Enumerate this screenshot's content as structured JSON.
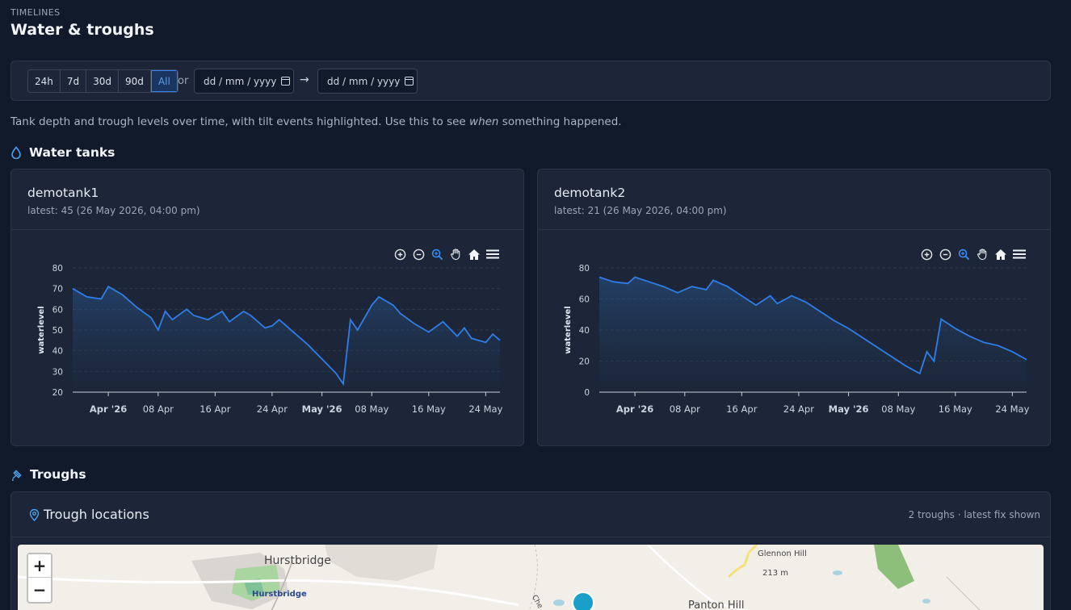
{
  "header": {
    "eyebrow": "TIMELINES",
    "title": "Water & troughs"
  },
  "filters": {
    "ranges": [
      "24h",
      "7d",
      "30d",
      "90d",
      "All"
    ],
    "active_range": "All",
    "or_label": "or",
    "from_placeholder": "dd / mm / yyyy",
    "arrow": "→",
    "to_placeholder": "dd / mm / yyyy"
  },
  "description": {
    "before": "Tank depth and trough levels over time, with tilt events highlighted. Use this to see ",
    "emphasis": "when",
    "after": " something happened."
  },
  "tanks_section": {
    "title": "Water tanks",
    "icon": "droplet-icon"
  },
  "tanks": [
    {
      "name": "demotank1",
      "latest": "latest: 45 (26 May 2026, 04:00 pm)"
    },
    {
      "name": "demotank2",
      "latest": "latest: 21 (26 May 2026, 04:00 pm)"
    }
  ],
  "chart_data": [
    {
      "type": "area",
      "ylabel": "waterlevel",
      "ylim": [
        20,
        80
      ],
      "yticks": [
        20,
        30,
        40,
        50,
        60,
        70,
        80
      ],
      "xticks": [
        "Apr '26",
        "08 Apr",
        "16 Apr",
        "24 Apr",
        "May '26",
        "08 May",
        "16 May",
        "24 May"
      ],
      "x": [
        "2026-03-27",
        "2026-03-29",
        "2026-03-31",
        "2026-04-01",
        "2026-04-03",
        "2026-04-05",
        "2026-04-07",
        "2026-04-08",
        "2026-04-09",
        "2026-04-10",
        "2026-04-12",
        "2026-04-13",
        "2026-04-15",
        "2026-04-17",
        "2026-04-18",
        "2026-04-20",
        "2026-04-21",
        "2026-04-23",
        "2026-04-24",
        "2026-04-25",
        "2026-04-27",
        "2026-04-29",
        "2026-05-01",
        "2026-05-03",
        "2026-05-04",
        "2026-05-05",
        "2026-05-06",
        "2026-05-08",
        "2026-05-09",
        "2026-05-11",
        "2026-05-12",
        "2026-05-14",
        "2026-05-16",
        "2026-05-18",
        "2026-05-20",
        "2026-05-21",
        "2026-05-22",
        "2026-05-24",
        "2026-05-25",
        "2026-05-26"
      ],
      "values": [
        70,
        66,
        65,
        71,
        67,
        61,
        56,
        50,
        59,
        55,
        60,
        57,
        55,
        59,
        54,
        59,
        57,
        51,
        52,
        55,
        49,
        43,
        36,
        29,
        24,
        55,
        50,
        62,
        66,
        62,
        58,
        53,
        49,
        54,
        47,
        51,
        46,
        44,
        48,
        45
      ],
      "series": [
        {
          "name": ""
        }
      ],
      "grid": true
    },
    {
      "type": "area",
      "ylabel": "waterlevel",
      "ylim": [
        0,
        80
      ],
      "yticks": [
        0,
        20,
        40,
        60,
        80
      ],
      "xticks": [
        "Apr '26",
        "08 Apr",
        "16 Apr",
        "24 Apr",
        "May '26",
        "08 May",
        "16 May",
        "24 May"
      ],
      "x": [
        "2026-03-27",
        "2026-03-29",
        "2026-03-31",
        "2026-04-01",
        "2026-04-03",
        "2026-04-05",
        "2026-04-07",
        "2026-04-09",
        "2026-04-11",
        "2026-04-12",
        "2026-04-14",
        "2026-04-16",
        "2026-04-18",
        "2026-04-20",
        "2026-04-21",
        "2026-04-23",
        "2026-04-25",
        "2026-04-27",
        "2026-04-29",
        "2026-05-01",
        "2026-05-03",
        "2026-05-05",
        "2026-05-07",
        "2026-05-09",
        "2026-05-11",
        "2026-05-12",
        "2026-05-13",
        "2026-05-14",
        "2026-05-15",
        "2026-05-16",
        "2026-05-18",
        "2026-05-20",
        "2026-05-22",
        "2026-05-24",
        "2026-05-26"
      ],
      "values": [
        74,
        71,
        70,
        74,
        71,
        68,
        64,
        68,
        66,
        72,
        68,
        62,
        56,
        62,
        57,
        62,
        58,
        52,
        46,
        41,
        35,
        29,
        23,
        17,
        12,
        26,
        20,
        47,
        44,
        41,
        36,
        32,
        30,
        26,
        21
      ],
      "series": [
        {
          "name": ""
        }
      ],
      "grid": true
    }
  ],
  "troughs_section": {
    "title": "Troughs",
    "icon": "trough-icon"
  },
  "trough_locations": {
    "title": "Trough locations",
    "meta": "2 troughs · latest fix shown"
  },
  "map": {
    "zoom_in": "+",
    "zoom_out": "−",
    "labels": [
      "Hurstbridge",
      "Hurstbridge",
      "Glennon Hill",
      "213 m",
      "Panton Hill",
      "Che"
    ]
  },
  "colors": {
    "accent": "#3b82f6",
    "line": "#2f7ee8",
    "background": "#111a2b",
    "card": "#1c2638"
  }
}
